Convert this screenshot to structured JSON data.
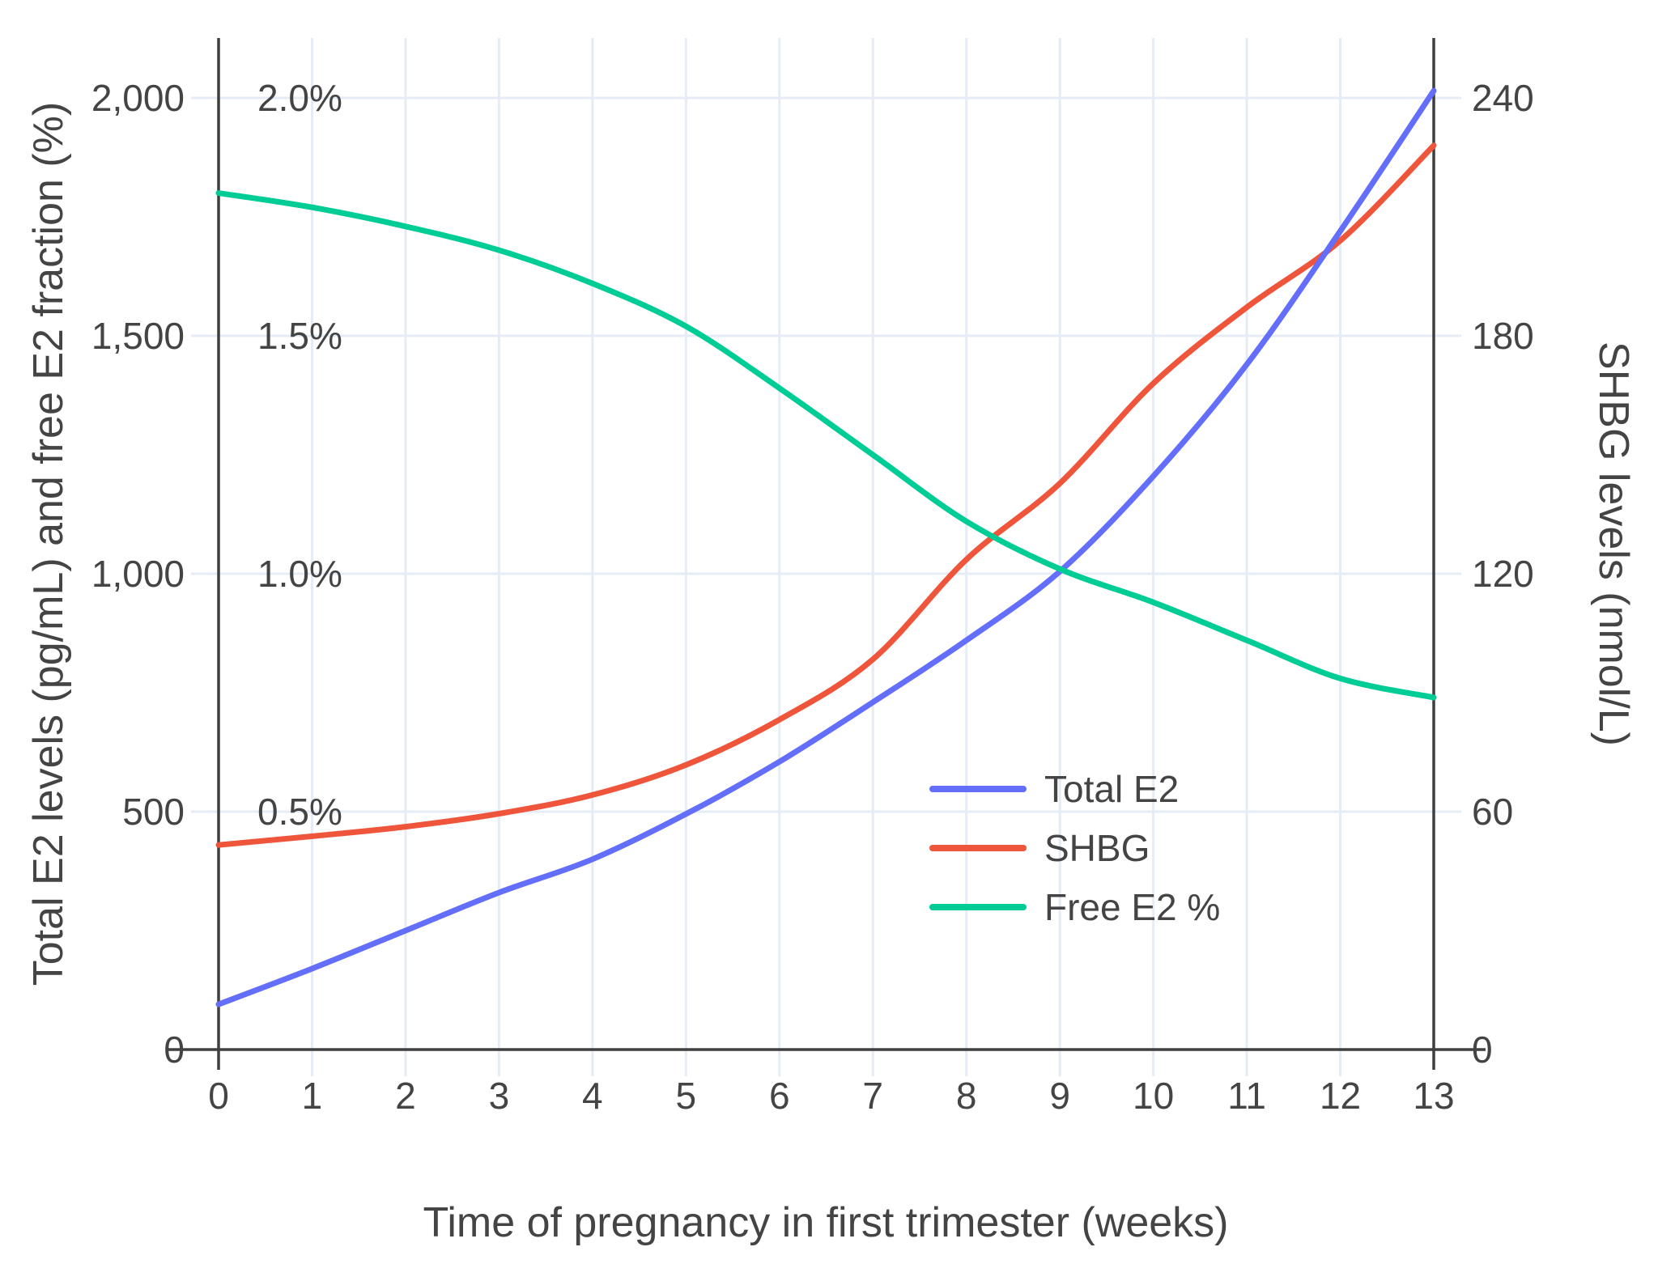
{
  "chart_data": {
    "type": "line",
    "title": "",
    "xlabel": "Time of pregnancy in first trimester (weeks)",
    "ylabel_left": "Total E2 levels (pg/mL) and free E2 fraction (%)",
    "ylabel_right": "SHBG levels (nmol/L)",
    "x": [
      0,
      1,
      2,
      3,
      4,
      5,
      6,
      7,
      8,
      9,
      10,
      11,
      12,
      13
    ],
    "x_range": [
      0,
      13
    ],
    "grid": true,
    "y_left": {
      "ticks": [
        0,
        500,
        1000,
        1500,
        2000
      ],
      "labels": [
        "0",
        "500",
        "1,000",
        "1,500",
        "2,000"
      ],
      "range": [
        0,
        2126
      ]
    },
    "y_left_pct": {
      "ticks": [
        500,
        1000,
        1500,
        2000
      ],
      "labels": [
        "0.5%",
        "1.0%",
        "1.5%",
        "2.0%"
      ]
    },
    "y_right": {
      "ticks": [
        0,
        60,
        120,
        180,
        240
      ],
      "labels": [
        "0",
        "60",
        "120",
        "180",
        "240"
      ],
      "range": [
        0,
        255
      ]
    },
    "series": [
      {
        "name": "Total E2",
        "axis": "left",
        "unit": "pg/mL",
        "color": "#636EFA",
        "values": [
          95,
          170,
          250,
          330,
          400,
          495,
          605,
          730,
          860,
          1005,
          1205,
          1440,
          1720,
          2015
        ]
      },
      {
        "name": "SHBG",
        "axis": "right",
        "unit": "nmol/L",
        "color": "#EF553B",
        "values": [
          51.6,
          53.8,
          56.2,
          59.5,
          64.2,
          71.8,
          83.2,
          98.4,
          123.6,
          142.8,
          168.0,
          187.2,
          204.0,
          228.0
        ]
      },
      {
        "name": "Free E2 %",
        "axis": "left_pct",
        "unit": "%",
        "color": "#00CC96",
        "values": [
          1.8,
          1.77,
          1.73,
          1.68,
          1.61,
          1.52,
          1.39,
          1.25,
          1.11,
          1.01,
          0.94,
          0.86,
          0.78,
          0.74
        ]
      }
    ],
    "legend": {
      "position": "inside-right",
      "entries": [
        "Total E2",
        "SHBG",
        "Free E2 %"
      ]
    },
    "style": {
      "grid_color": "#e6ecf5",
      "axis_color": "#3f3f3f",
      "text_color": "#444444",
      "line_width": 7
    }
  }
}
